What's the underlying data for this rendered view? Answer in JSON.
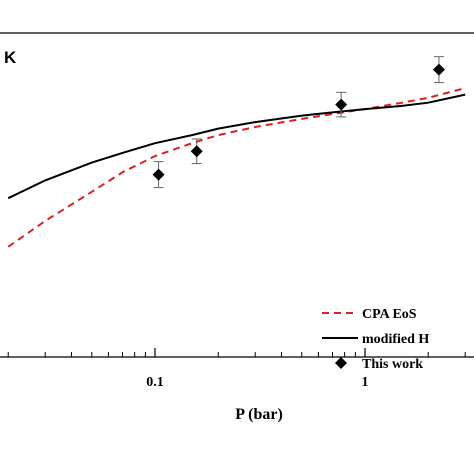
{
  "chart_data": {
    "type": "line",
    "corner_label": "K",
    "xlabel": "P (bar)",
    "ylabel": "",
    "xscale": "log",
    "xlim": [
      0.02,
      3.0
    ],
    "ylim": [
      0,
      10
    ],
    "x_ticks": [
      {
        "value": 0.1,
        "label": "0.1"
      },
      {
        "value": 1,
        "label": "1"
      }
    ],
    "grid": false,
    "legend_position": "bottom-right",
    "series": [
      {
        "name": "CPA EoS",
        "kind": "line",
        "style": "dashed",
        "color": "#e02020",
        "x": [
          0.02,
          0.03,
          0.05,
          0.07,
          0.1,
          0.15,
          0.2,
          0.3,
          0.5,
          0.7,
          1.0,
          1.5,
          2.0,
          3.0
        ],
        "y": [
          3.4,
          4.2,
          5.1,
          5.7,
          6.2,
          6.6,
          6.85,
          7.1,
          7.35,
          7.5,
          7.65,
          7.85,
          8.0,
          8.3
        ]
      },
      {
        "name": "modified H",
        "kind": "line",
        "style": "solid",
        "color": "#000000",
        "x": [
          0.02,
          0.03,
          0.05,
          0.07,
          0.1,
          0.15,
          0.2,
          0.3,
          0.5,
          0.7,
          1.0,
          1.5,
          2.0,
          3.0
        ],
        "y": [
          4.9,
          5.45,
          6.0,
          6.3,
          6.6,
          6.85,
          7.05,
          7.25,
          7.45,
          7.55,
          7.65,
          7.75,
          7.85,
          8.1
        ]
      },
      {
        "name": "This work",
        "kind": "scatter",
        "marker": "diamond",
        "color": "#000000",
        "x": [
          0.104,
          0.158,
          0.77,
          2.25
        ],
        "y": [
          5.63,
          6.35,
          7.79,
          8.87
        ],
        "error": [
          0.4,
          0.38,
          0.38,
          0.4
        ]
      }
    ]
  }
}
